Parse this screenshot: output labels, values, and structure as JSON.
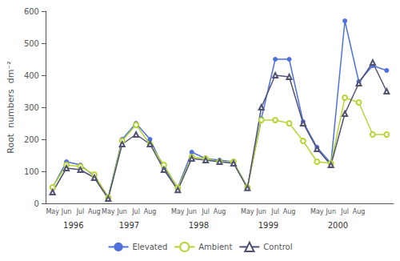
{
  "chart_data": {
    "type": "line",
    "ylabel": "Root  numbers  dm⁻²",
    "categories": [
      "May",
      "Jun",
      "Jul",
      "Aug",
      "May",
      "Jun",
      "Jul",
      "Aug",
      null,
      "May",
      "Jun",
      "Jul",
      "Aug",
      null,
      "May",
      "Jun",
      "Jul",
      "Aug",
      null,
      "May",
      "Jun",
      "Jul",
      "Aug",
      null,
      null
    ],
    "series": [
      {
        "name": "Elevated",
        "marker": "circle",
        "values": [
          50,
          130,
          120,
          85,
          20,
          200,
          250,
          200,
          110,
          50,
          160,
          140,
          135,
          130,
          50,
          265,
          450,
          450,
          255,
          175,
          125,
          570,
          380,
          430,
          415
        ]
      },
      {
        "name": "Ambient",
        "marker": "emptyCircle",
        "values": [
          50,
          120,
          115,
          90,
          18,
          195,
          245,
          185,
          120,
          48,
          145,
          140,
          130,
          130,
          50,
          260,
          260,
          250,
          195,
          130,
          125,
          330,
          315,
          215,
          215
        ]
      },
      {
        "name": "Control",
        "marker": "emptyTriangle",
        "values": [
          35,
          110,
          105,
          80,
          15,
          185,
          215,
          185,
          105,
          42,
          140,
          135,
          130,
          125,
          48,
          300,
          400,
          395,
          250,
          170,
          120,
          280,
          375,
          440,
          350
        ]
      }
    ],
    "annotations": [
      "1996",
      "1997",
      "1998",
      "1999",
      "2000"
    ],
    "ylim": [
      0,
      600
    ],
    "yticks": [
      0,
      100,
      200,
      300,
      400,
      500,
      600
    ],
    "grid": false,
    "legend": "bottom"
  }
}
